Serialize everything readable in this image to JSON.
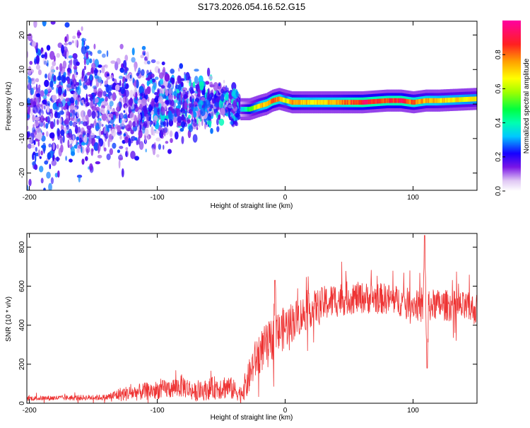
{
  "chart_data": [
    {
      "type": "heatmap",
      "title": "S173.2026.054.16.52.G15",
      "xlabel": "Height of straight line (km)",
      "ylabel": "Frequency (Hz)",
      "xlim": [
        -202,
        150
      ],
      "ylim": [
        -25,
        24
      ],
      "x_ticks": [
        -200,
        -100,
        0,
        100
      ],
      "x_tick_labels": [
        "-200",
        "-100",
        "0",
        "100"
      ],
      "y_ticks": [
        -20,
        -10,
        0,
        10,
        20
      ],
      "y_tick_labels": [
        "-20",
        "-10",
        "0",
        "10",
        "20"
      ],
      "colorbar": {
        "label": "Normalized spectral amplitude",
        "range": [
          0,
          1
        ],
        "ticks": [
          0.0,
          0.2,
          0.4,
          0.6,
          0.8
        ],
        "tick_labels": [
          "0.0",
          "0.2",
          "0.4",
          "0.6",
          "0.8"
        ]
      },
      "ridge": {
        "x": [
          -35,
          -28,
          -20,
          -15,
          -10,
          -5,
          0,
          5,
          10,
          20,
          40,
          60,
          80,
          90,
          100,
          110,
          120,
          150
        ],
        "freq": [
          -1.5,
          -1.5,
          -0.5,
          0,
          1,
          1.5,
          1,
          0.5,
          0.5,
          0.5,
          0.5,
          0.5,
          1,
          1,
          0.5,
          1,
          1,
          1.5
        ],
        "amplitude": [
          0.3,
          0.5,
          0.7,
          0.75,
          0.85,
          0.75,
          0.6,
          0.8,
          0.75,
          0.7,
          0.75,
          0.9,
          0.85,
          0.9,
          0.8,
          0.75,
          0.7,
          0.65
        ]
      },
      "scatter_region": {
        "x_range": [
          -202,
          -35
        ],
        "freq_spread_hz": [
          -25,
          24
        ],
        "narrowing_toward_x": -35,
        "typical_amplitude": [
          0.05,
          0.3
        ]
      }
    },
    {
      "type": "line",
      "title": "",
      "xlabel": "Height of straight line (km)",
      "ylabel": "SNR (10 * v/v)",
      "xlim": [
        -202,
        150
      ],
      "ylim": [
        0,
        870
      ],
      "x_ticks": [
        -200,
        -100,
        0,
        100
      ],
      "x_tick_labels": [
        "-200",
        "-100",
        "0",
        "100"
      ],
      "y_ticks": [
        0,
        200,
        400,
        600,
        800
      ],
      "y_tick_labels": [
        "0",
        "200",
        "400",
        "600",
        "800"
      ],
      "color": "#ee3333",
      "envelope": {
        "x": [
          -202,
          -140,
          -130,
          -110,
          -90,
          -80,
          -70,
          -55,
          -45,
          -35,
          -30,
          -25,
          -20,
          -10,
          0,
          10,
          20,
          30,
          40,
          50,
          60,
          80,
          100,
          109,
          115,
          130,
          150
        ],
        "mean": [
          25,
          30,
          45,
          60,
          75,
          90,
          55,
          80,
          85,
          50,
          100,
          200,
          260,
          330,
          390,
          440,
          480,
          510,
          530,
          540,
          540,
          535,
          510,
          480,
          505,
          500,
          480
        ],
        "spread": [
          12,
          15,
          35,
          45,
          50,
          60,
          45,
          60,
          65,
          40,
          80,
          100,
          110,
          110,
          110,
          100,
          90,
          90,
          90,
          85,
          80,
          80,
          75,
          80,
          80,
          80,
          80
        ]
      },
      "features": [
        {
          "x": 109,
          "value": 860,
          "kind": "spike"
        },
        {
          "x": 111,
          "value": 180,
          "kind": "dip"
        },
        {
          "x": -8,
          "value": 630,
          "kind": "spike"
        }
      ]
    }
  ]
}
